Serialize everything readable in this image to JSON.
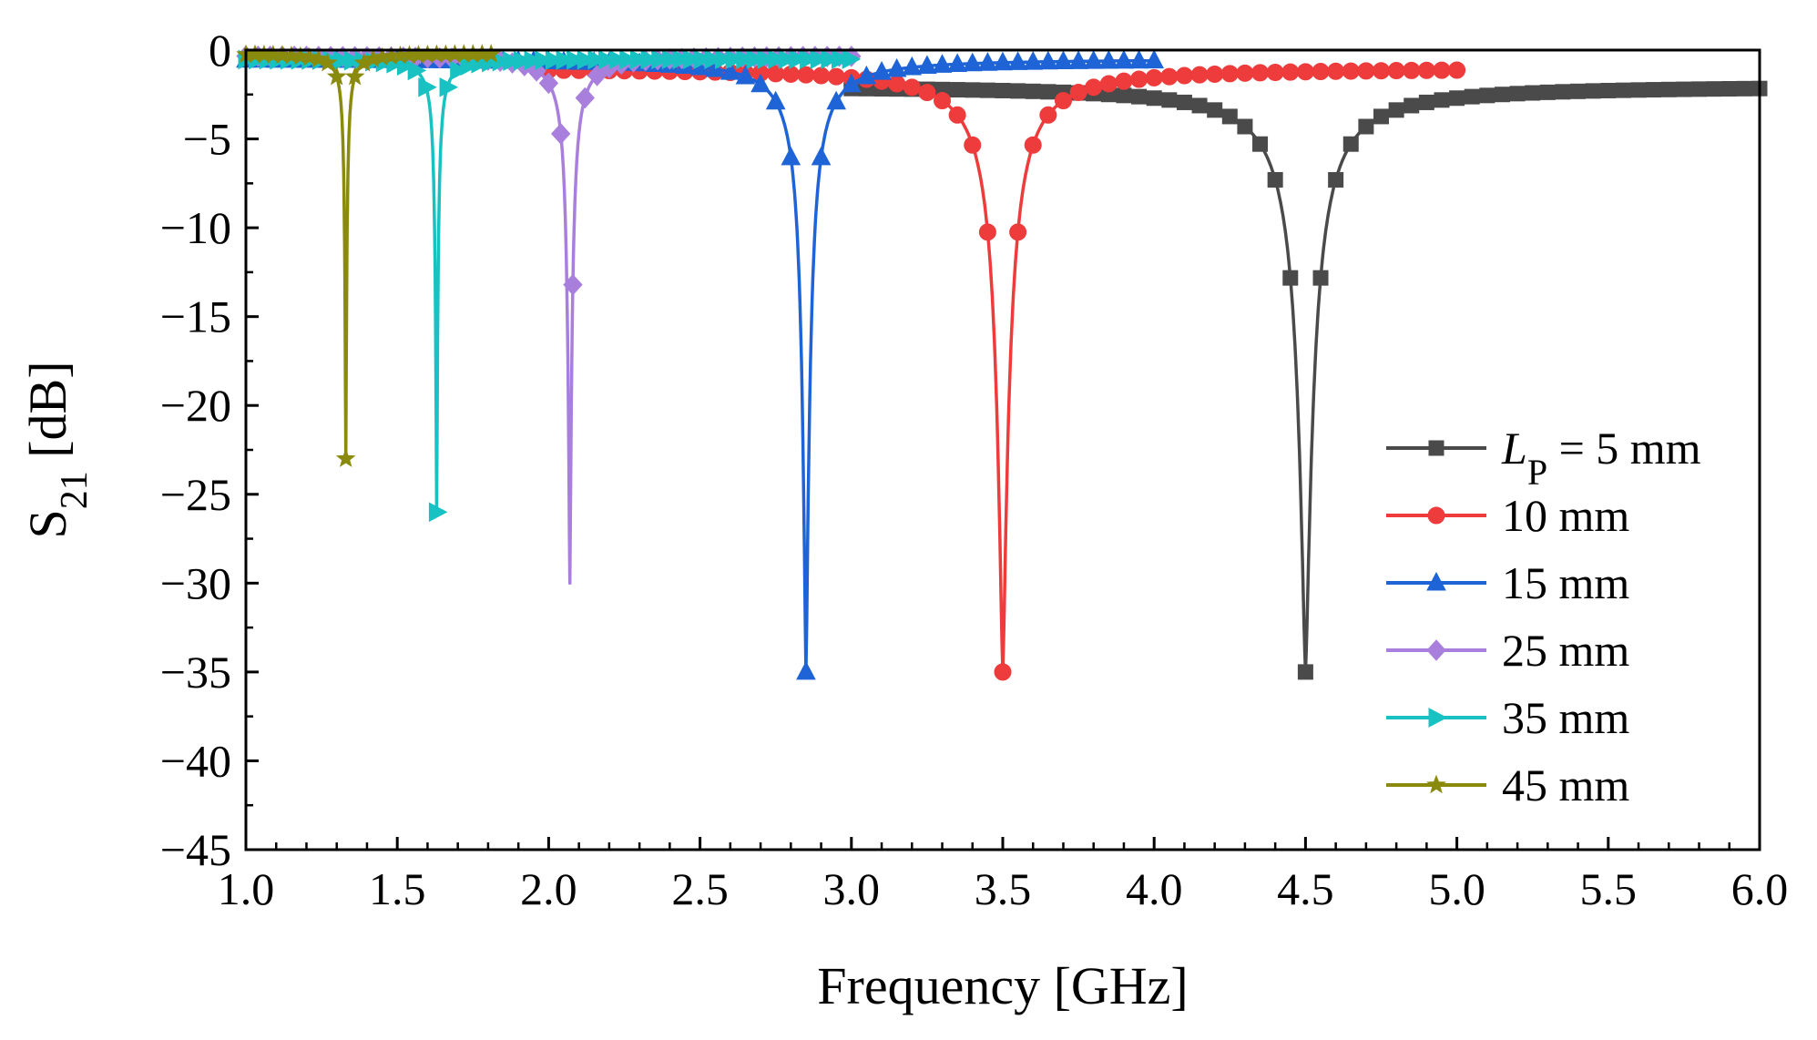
{
  "chart_data": {
    "type": "line",
    "title": "",
    "xlabel": "Frequency [GHz]",
    "ylabel": {
      "main": "S",
      "sub": "21",
      "unit": " [dB]"
    },
    "xlim": [
      1.0,
      6.0
    ],
    "ylim": [
      -45,
      0
    ],
    "x_ticks": [
      "1.0",
      "1.5",
      "2.0",
      "2.5",
      "3.0",
      "3.5",
      "4.0",
      "4.5",
      "5.0",
      "5.5",
      "6.0"
    ],
    "y_ticks": [
      "0",
      "−5",
      "−10",
      "−15",
      "−20",
      "−25",
      "−30",
      "−35",
      "−40",
      "−45"
    ],
    "legend_position": "bottom-right",
    "legend_prefix": {
      "symbol": "L",
      "sub": "P",
      "rest": " = "
    },
    "series": [
      {
        "name": "5 mm",
        "lp_mm": 5,
        "color": "#4a4a4a",
        "marker": "square",
        "range": [
          3.0,
          6.0
        ],
        "marker_step": 0.05,
        "resonance_ghz": 4.5,
        "min_db": -35.0,
        "baseline_db": -2.0,
        "width": 0.25
      },
      {
        "name": "10 mm",
        "lp_mm": 10,
        "color": "#ee3b3b",
        "marker": "circle",
        "range": [
          2.0,
          5.0
        ],
        "marker_step": 0.05,
        "resonance_ghz": 3.5,
        "min_db": -35.0,
        "baseline_db": -1.0,
        "width": 0.205
      },
      {
        "name": "15 mm",
        "lp_mm": 15,
        "color": "#1e64d6",
        "marker": "triangle-up",
        "range": [
          1.0,
          4.0
        ],
        "marker_step": 0.05,
        "resonance_ghz": 2.85,
        "min_db": -35.0,
        "baseline_db": -0.5,
        "width": 0.125
      },
      {
        "name": "25 mm",
        "lp_mm": 25,
        "color": "#a97fde",
        "marker": "diamond",
        "range": [
          1.0,
          3.0
        ],
        "marker_step": 0.04,
        "resonance_ghz": 2.07,
        "min_db": -30.0,
        "baseline_db": -0.3,
        "width": 0.07
      },
      {
        "name": "35 mm",
        "lp_mm": 35,
        "color": "#18c2c2",
        "marker": "triangle-right",
        "range": [
          1.0,
          3.0
        ],
        "marker_step": 0.035,
        "resonance_ghz": 1.63,
        "min_db": -26.0,
        "baseline_db": -0.5,
        "width": 0.04
      },
      {
        "name": "45 mm",
        "lp_mm": 45,
        "color": "#8a8a0c",
        "marker": "star",
        "range": [
          1.0,
          1.8
        ],
        "marker_step": 0.03,
        "resonance_ghz": 1.33,
        "min_db": -23.0,
        "baseline_db": -0.2,
        "width": 0.032
      }
    ]
  }
}
